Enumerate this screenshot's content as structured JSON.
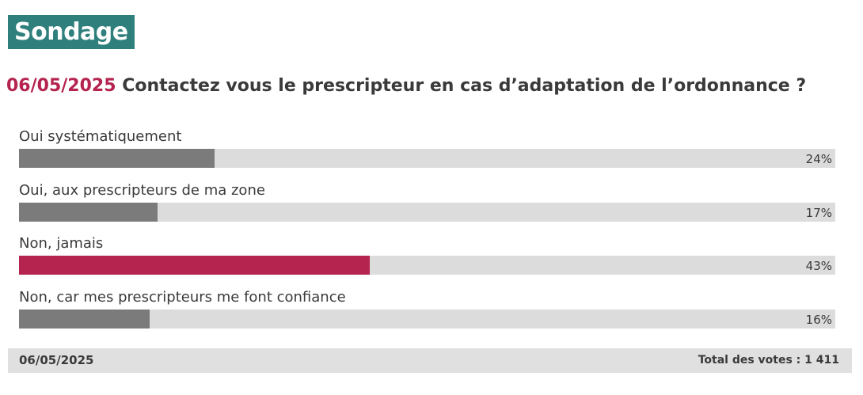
{
  "badge": {
    "label": "Sondage"
  },
  "question": {
    "date": "06/05/2025",
    "text": "Contactez vous le prescripteur en cas d’adaptation de l’ordonnance ?"
  },
  "chart_data": {
    "type": "bar",
    "orientation": "horizontal",
    "categories": [
      "Oui systématiquement",
      "Oui, aux prescripteurs de ma zone",
      "Non, jamais",
      "Non, car mes prescripteurs me font confiance"
    ],
    "values": [
      24,
      17,
      43,
      16
    ],
    "value_labels": [
      "24%",
      "17%",
      "43%",
      "16%"
    ],
    "xlim": [
      0,
      100
    ],
    "highlight_index": 2,
    "colors": {
      "bar": "#7b7b7b",
      "highlight": "#b5234f",
      "track": "#dcdcdc"
    }
  },
  "footer": {
    "date": "06/05/2025",
    "total": "Total des votes : 1 411"
  }
}
